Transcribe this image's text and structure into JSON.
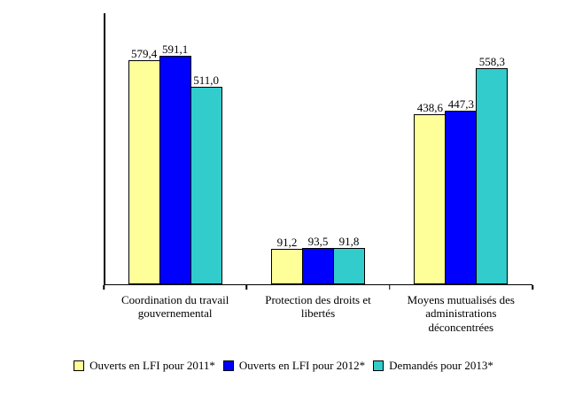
{
  "chart_data": {
    "type": "bar",
    "title": "",
    "xlabel": "",
    "ylabel": "",
    "ylim": [
      0,
      700
    ],
    "grid": false,
    "legend_position": "bottom",
    "value_label_decimal_separator": ",",
    "categories": [
      "Coordination du travail gouvernemental",
      "Protection des droits et libertés",
      "Moyens mutualisés des administrations déconcentrées"
    ],
    "series": [
      {
        "name": "Ouverts en LFI pour 2011*",
        "color": "#FFFF99",
        "values": [
          579.4,
          91.2,
          438.6
        ],
        "labels": [
          "579,4",
          "91,2",
          "438,6"
        ]
      },
      {
        "name": "Ouverts en LFI pour 2012*",
        "color": "#0000FF",
        "values": [
          591.1,
          93.5,
          447.3
        ],
        "labels": [
          "591,1",
          "93,5",
          "447,3"
        ]
      },
      {
        "name": "Demandés pour 2013*",
        "color": "#33CCCC",
        "values": [
          511.0,
          91.8,
          558.3
        ],
        "labels": [
          "511,0",
          "91,8",
          "558,3"
        ]
      }
    ],
    "colors": {
      "axis": "#000000",
      "bar_border": "#000000",
      "background": "#FFFFFF",
      "text": "#000000"
    }
  }
}
